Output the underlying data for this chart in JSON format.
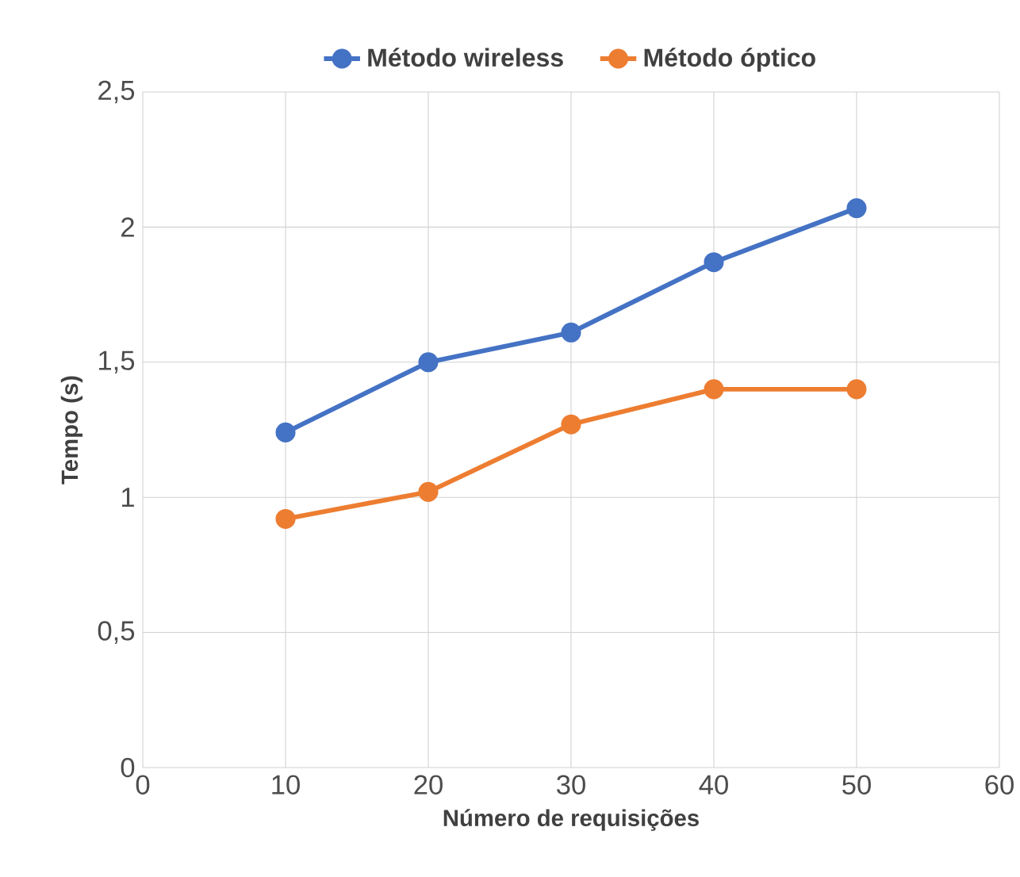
{
  "chart_data": {
    "type": "line",
    "xlabel": "Número de requisições",
    "ylabel": "Tempo (s)",
    "x": [
      10,
      20,
      30,
      40,
      50
    ],
    "series": [
      {
        "name": "Método wireless",
        "color": "#4472c4",
        "values": [
          1.24,
          1.5,
          1.61,
          1.87,
          2.07
        ]
      },
      {
        "name": "Método óptico",
        "color": "#ed7d31",
        "values": [
          0.92,
          1.02,
          1.27,
          1.4,
          1.4
        ]
      }
    ],
    "xlim": [
      0,
      60
    ],
    "xticks": [
      0,
      10,
      20,
      30,
      40,
      50,
      60
    ],
    "ylim": [
      0,
      2.5
    ],
    "yticks": [
      0,
      {
        "value": 0.5,
        "label": "0,5"
      },
      1,
      {
        "value": 1.5,
        "label": "1,5"
      },
      2,
      {
        "value": 2.5,
        "label": "2,5"
      }
    ],
    "grid": true,
    "legend": "top",
    "marker": "circle",
    "line_style": "solid"
  }
}
